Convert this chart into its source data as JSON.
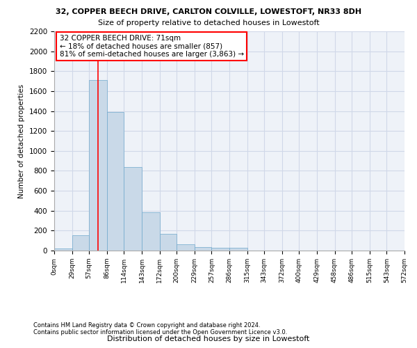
{
  "title1": "32, COPPER BEECH DRIVE, CARLTON COLVILLE, LOWESTOFT, NR33 8DH",
  "title2": "Size of property relative to detached houses in Lowestoft",
  "xlabel": "Distribution of detached houses by size in Lowestoft",
  "ylabel": "Number of detached properties",
  "bin_edges": [
    0,
    29,
    57,
    86,
    114,
    143,
    172,
    200,
    229,
    257,
    286,
    315,
    343,
    372,
    400,
    429,
    458,
    486,
    515,
    543,
    572
  ],
  "bar_heights": [
    20,
    155,
    1710,
    1390,
    835,
    385,
    165,
    65,
    38,
    30,
    30,
    0,
    0,
    0,
    0,
    0,
    0,
    0,
    0,
    0
  ],
  "bar_color": "#c9d9e8",
  "bar_edgecolor": "#6fa8cc",
  "property_size": 71,
  "annotation_box_text": "32 COPPER BEECH DRIVE: 71sqm\n← 18% of detached houses are smaller (857)\n81% of semi-detached houses are larger (3,863) →",
  "grid_color": "#d0d8e8",
  "background_color": "#eef2f8",
  "tick_labels": [
    "0sqm",
    "29sqm",
    "57sqm",
    "86sqm",
    "114sqm",
    "143sqm",
    "172sqm",
    "200sqm",
    "229sqm",
    "257sqm",
    "286sqm",
    "315sqm",
    "343sqm",
    "372sqm",
    "400sqm",
    "429sqm",
    "458sqm",
    "486sqm",
    "515sqm",
    "543sqm",
    "572sqm"
  ],
  "ylim": [
    0,
    2200
  ],
  "yticks": [
    0,
    200,
    400,
    600,
    800,
    1000,
    1200,
    1400,
    1600,
    1800,
    2000,
    2200
  ],
  "footer1": "Contains HM Land Registry data © Crown copyright and database right 2024.",
  "footer2": "Contains public sector information licensed under the Open Government Licence v3.0."
}
